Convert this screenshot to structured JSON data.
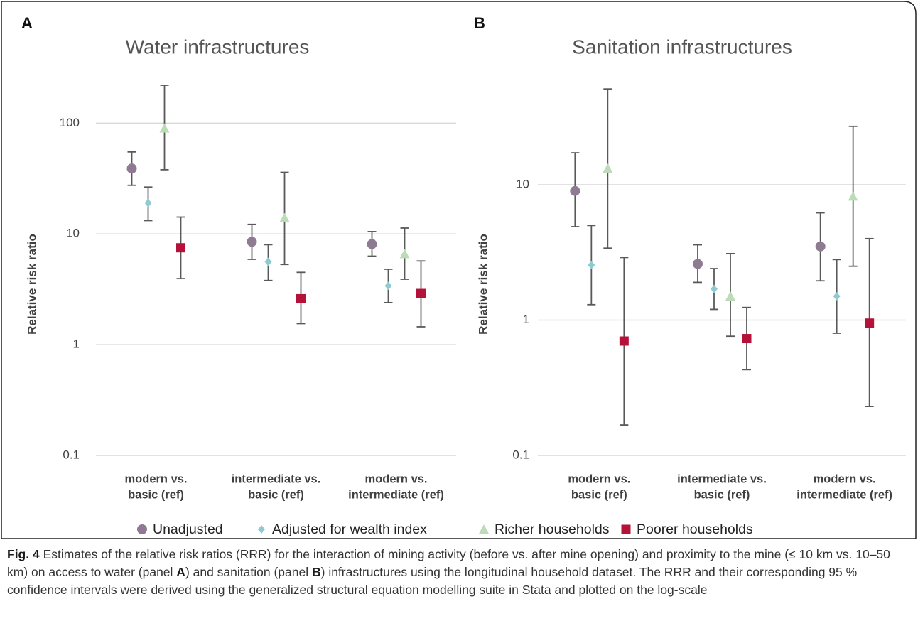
{
  "chart_data": [
    {
      "type": "errorpoint",
      "panel": "A",
      "title": "Water infrastructures",
      "ylabel": "Relative risk ratio",
      "categories": [
        [
          "modern vs.",
          "basic (ref)"
        ],
        [
          "intermediate vs.",
          "basic (ref)"
        ],
        [
          "modern vs.",
          "intermediate (ref)"
        ]
      ],
      "log_scale": true,
      "grid": true,
      "ylim": [
        0.1,
        300
      ],
      "yticks": [
        0.1,
        1,
        10,
        100
      ],
      "series": [
        {
          "values": [
            39,
            8.5,
            8.1
          ],
          "lower": [
            27.5,
            5.9,
            6.3
          ],
          "upper": [
            55,
            12.2,
            10.5
          ]
        },
        {
          "values": [
            19,
            5.6,
            3.4
          ],
          "lower": [
            13.2,
            3.8,
            2.4
          ],
          "upper": [
            26.5,
            8,
            4.8
          ]
        },
        {
          "values": [
            90,
            14,
            6.6
          ],
          "lower": [
            38,
            5.3,
            3.9
          ],
          "upper": [
            220,
            36,
            11.3
          ]
        },
        {
          "values": [
            7.5,
            2.6,
            2.9
          ],
          "lower": [
            3.95,
            1.55,
            1.45
          ],
          "upper": [
            14.2,
            4.5,
            5.7
          ]
        }
      ]
    },
    {
      "type": "errorpoint",
      "panel": "B",
      "title": "Sanitation infrastructures",
      "ylabel": "Relative risk ratio",
      "categories": [
        [
          "modern vs.",
          "basic (ref)"
        ],
        [
          "intermediate vs.",
          "basic (ref)"
        ],
        [
          "modern vs.",
          "intermediate (ref)"
        ]
      ],
      "log_scale": true,
      "grid": true,
      "ylim": [
        0.1,
        70
      ],
      "yticks": [
        0.1,
        1,
        10
      ],
      "series": [
        {
          "values": [
            9,
            2.6,
            3.5
          ],
          "lower": [
            4.9,
            1.9,
            1.95
          ],
          "upper": [
            17.2,
            3.6,
            6.2
          ]
        },
        {
          "values": [
            2.55,
            1.7,
            1.5
          ],
          "lower": [
            1.3,
            1.2,
            0.8
          ],
          "upper": [
            5,
            2.4,
            2.8
          ]
        },
        {
          "values": [
            13.2,
            1.5,
            8.2
          ],
          "lower": [
            3.4,
            0.76,
            2.5
          ],
          "upper": [
            51,
            3.1,
            27
          ]
        },
        {
          "values": [
            0.7,
            0.73,
            0.95
          ],
          "lower": [
            0.168,
            0.43,
            0.23
          ],
          "upper": [
            2.9,
            1.24,
            4
          ]
        }
      ]
    }
  ],
  "legend": [
    {
      "name": "Unadjusted",
      "color": "#8e7b92",
      "marker": "circle"
    },
    {
      "name": "Adjusted for wealth index",
      "color": "#8ecbd1",
      "marker": "diamond"
    },
    {
      "name": "Richer households",
      "color": "#bcdcb8",
      "marker": "triangle"
    },
    {
      "name": "Poorer households",
      "color": "#b5123a",
      "marker": "square"
    }
  ],
  "caption": {
    "label": "Fig. 4",
    "parts": [
      "Estimates of the relative risk ratios (RRR) for the interaction of mining activity (before vs. after mine opening) and proximity to the mine (≤ 10 km vs. 10–50 km) on access to water (panel ",
      "A",
      ") and sanitation (panel ",
      "B",
      ") infrastructures using the longitudinal household dataset. The RRR and their corresponding 95 % confidence intervals were derived using the generalized structural equation modelling suite in Stata and plotted on the log-scale"
    ]
  }
}
